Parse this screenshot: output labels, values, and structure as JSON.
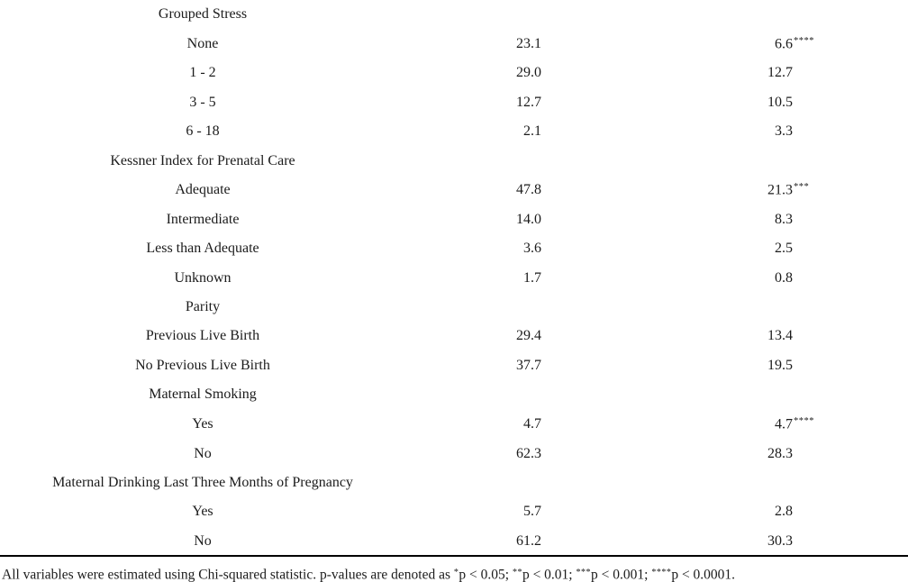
{
  "table": {
    "text_color": "#1b1b1b",
    "rule_color": "#000000",
    "rows": [
      {
        "type": "group",
        "label": "Grouped Stress",
        "value1": "",
        "value2": "",
        "sig2": ""
      },
      {
        "type": "item",
        "label": "None",
        "value1": "23.1",
        "value2": "6.6",
        "sig2": "****"
      },
      {
        "type": "item",
        "label": "1 - 2",
        "value1": "29.0",
        "value2": "12.7",
        "sig2": ""
      },
      {
        "type": "item",
        "label": "3 - 5",
        "value1": "12.7",
        "value2": "10.5",
        "sig2": ""
      },
      {
        "type": "item",
        "label": "6 - 18",
        "value1": "2.1",
        "value2": "3.3",
        "sig2": ""
      },
      {
        "type": "group",
        "label": "Kessner Index for Prenatal Care",
        "value1": "",
        "value2": "",
        "sig2": ""
      },
      {
        "type": "item",
        "label": "Adequate",
        "value1": "47.8",
        "value2": "21.3",
        "sig2": "***"
      },
      {
        "type": "item",
        "label": "Intermediate",
        "value1": "14.0",
        "value2": "8.3",
        "sig2": ""
      },
      {
        "type": "item",
        "label": "Less than Adequate",
        "value1": "3.6",
        "value2": "2.5",
        "sig2": ""
      },
      {
        "type": "item",
        "label": "Unknown",
        "value1": "1.7",
        "value2": "0.8",
        "sig2": ""
      },
      {
        "type": "group",
        "label": "Parity",
        "value1": "",
        "value2": "",
        "sig2": ""
      },
      {
        "type": "item",
        "label": "Previous Live Birth",
        "value1": "29.4",
        "value2": "13.4",
        "sig2": ""
      },
      {
        "type": "item",
        "label": "No Previous Live Birth",
        "value1": "37.7",
        "value2": "19.5",
        "sig2": ""
      },
      {
        "type": "group",
        "label": "Maternal Smoking",
        "value1": "",
        "value2": "",
        "sig2": ""
      },
      {
        "type": "item",
        "label": "Yes",
        "value1": "4.7",
        "value2": "4.7",
        "sig2": "****"
      },
      {
        "type": "item",
        "label": "No",
        "value1": "62.3",
        "value2": "28.3",
        "sig2": ""
      },
      {
        "type": "group",
        "label": "Maternal Drinking Last Three Months of Pregnancy",
        "value1": "",
        "value2": "",
        "sig2": ""
      },
      {
        "type": "item",
        "label": "Yes",
        "value1": "5.7",
        "value2": "2.8",
        "sig2": ""
      },
      {
        "type": "item",
        "label": "No",
        "value1": "61.2",
        "value2": "30.3",
        "sig2": ""
      }
    ],
    "footnote_segments": [
      {
        "text": "All variables were estimated using Chi-squared statistic. p-values are denoted as "
      },
      {
        "sup": "*"
      },
      {
        "text": "p < 0.05; "
      },
      {
        "sup": "**"
      },
      {
        "text": "p < 0.01; "
      },
      {
        "sup": "***"
      },
      {
        "text": "p < 0.001; "
      },
      {
        "sup": "****"
      },
      {
        "text": "p < 0.0001."
      }
    ]
  }
}
